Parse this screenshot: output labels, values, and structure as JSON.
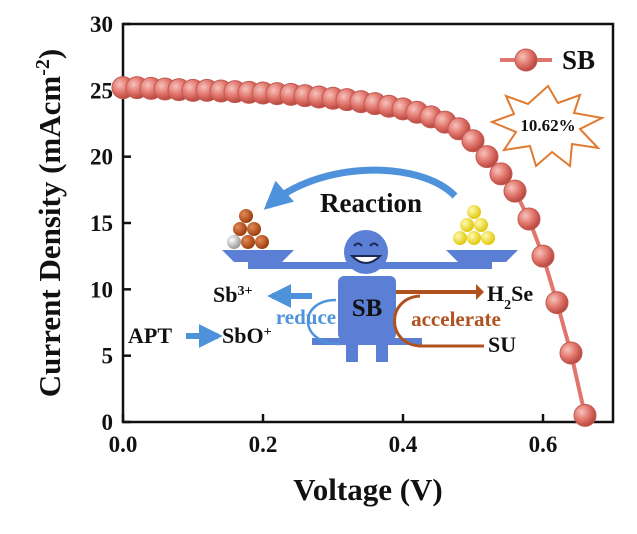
{
  "chart_data": {
    "type": "line",
    "xlabel": "Voltage (V)",
    "ylabel_main": "Current Density (mAcm",
    "ylabel_sup": "-2",
    "ylabel_close": ")",
    "xlim": [
      0,
      0.7
    ],
    "ylim": [
      0,
      30
    ],
    "x_ticks": [
      "0.0",
      "0.2",
      "0.4",
      "0.6"
    ],
    "x_tick_values": [
      0,
      0.2,
      0.4,
      0.6
    ],
    "y_ticks": [
      "0",
      "5",
      "10",
      "15",
      "20",
      "25",
      "30"
    ],
    "y_tick_values": [
      0,
      5,
      10,
      15,
      20,
      25,
      30
    ],
    "grid": false,
    "legend_position": "top-right",
    "series": [
      {
        "name": "SB",
        "color": "#e0766d",
        "x": [
          0.0,
          0.02,
          0.04,
          0.06,
          0.08,
          0.1,
          0.12,
          0.14,
          0.16,
          0.18,
          0.2,
          0.22,
          0.24,
          0.26,
          0.28,
          0.3,
          0.32,
          0.34,
          0.36,
          0.38,
          0.4,
          0.42,
          0.44,
          0.46,
          0.48,
          0.5,
          0.52,
          0.54,
          0.56,
          0.58,
          0.6,
          0.62,
          0.64,
          0.66
        ],
        "y": [
          25.2,
          25.2,
          25.15,
          25.1,
          25.05,
          25.0,
          25.0,
          24.95,
          24.9,
          24.85,
          24.8,
          24.75,
          24.7,
          24.6,
          24.5,
          24.4,
          24.3,
          24.15,
          24.0,
          23.8,
          23.6,
          23.35,
          23.0,
          22.6,
          22.1,
          21.2,
          20.0,
          18.7,
          17.4,
          15.3,
          12.5,
          9.0,
          5.2,
          0.5
        ]
      }
    ],
    "annotations": {
      "efficiency": "10.62%",
      "reaction": "Reaction",
      "sb_label": "SB",
      "sb3": "Sb",
      "sb3_sup": "3+",
      "h2se_h": "H",
      "h2se_sub": "2",
      "h2se_se": "Se",
      "reduce": "reduce",
      "accelerate": "accelerate",
      "apt": "APT",
      "sbo": "SbO",
      "sbo_sup": "+",
      "su": "SU"
    }
  },
  "colors": {
    "marker": "#d5665e",
    "marker_light": "#f2aba3",
    "figure_blue": "#5b7fd4",
    "figure_dark": "#4a6cc0",
    "arrow_blue": "#4f92dc",
    "arrow_brown": "#b0521f",
    "ball_brown": "#b5541c",
    "ball_yellow": "#f3e030",
    "star_stroke": "#e07a2e"
  }
}
